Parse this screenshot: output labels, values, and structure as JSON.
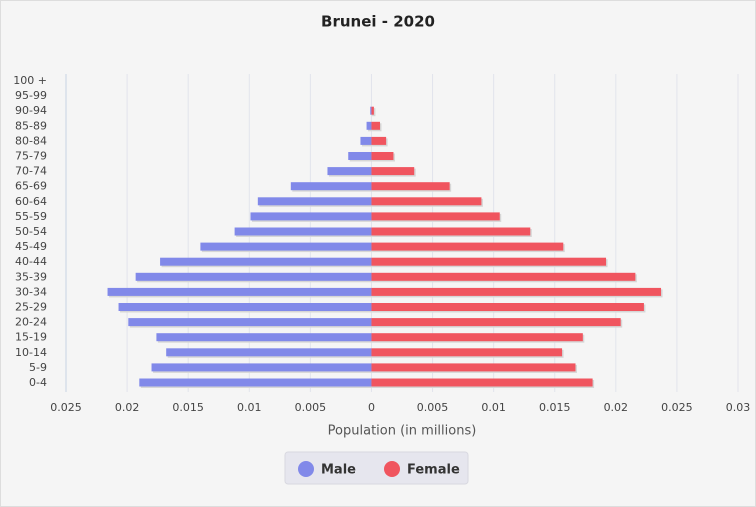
{
  "chart_data": {
    "type": "pyramid",
    "title": "Brunei - 2020",
    "x_label": "Population (in millions)",
    "categories": [
      "0-4",
      "5-9",
      "10-14",
      "15-19",
      "20-24",
      "25-29",
      "30-34",
      "35-39",
      "40-44",
      "45-49",
      "50-54",
      "55-59",
      "60-64",
      "65-69",
      "70-74",
      "75-79",
      "80-84",
      "85-89",
      "90-94",
      "95-99",
      "100 +"
    ],
    "series": [
      {
        "name": "Male",
        "color": "#8189e9",
        "values": [
          -0.019,
          -0.018,
          -0.0168,
          -0.0176,
          -0.0199,
          -0.0207,
          -0.0216,
          -0.0193,
          -0.0173,
          -0.014,
          -0.0112,
          -0.0099,
          -0.0093,
          -0.0066,
          -0.0036,
          -0.0019,
          -0.0009,
          -0.0004,
          -0.0001,
          0,
          0
        ]
      },
      {
        "name": "Female",
        "color": "#f0555f",
        "values": [
          0.0181,
          0.0167,
          0.0156,
          0.0173,
          0.0204,
          0.0223,
          0.0237,
          0.0216,
          0.0192,
          0.0157,
          0.013,
          0.0105,
          0.009,
          0.0064,
          0.0035,
          0.0018,
          0.0012,
          0.0007,
          0.0002,
          0,
          0
        ]
      }
    ],
    "xlim": [
      -0.025,
      0.03
    ],
    "xticks": [
      {
        "value": -0.025,
        "label": "0.025"
      },
      {
        "value": -0.02,
        "label": "0.02"
      },
      {
        "value": -0.015,
        "label": "0.015"
      },
      {
        "value": -0.01,
        "label": "0.01"
      },
      {
        "value": -0.005,
        "label": "0.005"
      },
      0,
      0.005,
      0.01,
      0.015,
      0.02,
      0.025,
      0.03
    ],
    "grid": true
  }
}
